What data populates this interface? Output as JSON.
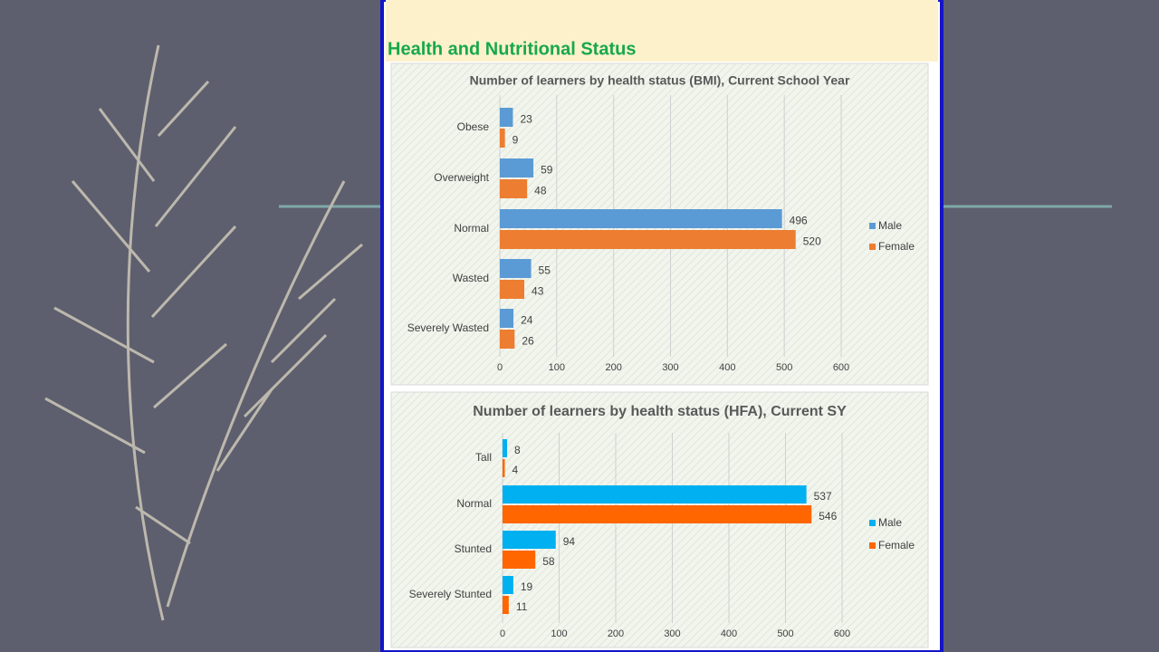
{
  "heading": "Health and Nutritional Status",
  "chart_data": [
    {
      "type": "barh",
      "title": "Number of learners by health status (BMI), Current School Year",
      "categories": [
        "Obese",
        "Overweight",
        "Normal",
        "Wasted",
        "Severely Wasted"
      ],
      "series": [
        {
          "name": "Male",
          "color": "#5b9bd5",
          "values": [
            23,
            59,
            496,
            55,
            24
          ]
        },
        {
          "name": "Female",
          "color": "#ed7d31",
          "values": [
            9,
            48,
            520,
            43,
            26
          ]
        }
      ],
      "xlim": [
        0,
        600
      ],
      "xticks": [
        0,
        100,
        200,
        300,
        400,
        500,
        600
      ],
      "grid": true,
      "legend": "right"
    },
    {
      "type": "barh",
      "title": "Number of learners by health status (HFA), Current SY",
      "categories": [
        "Tall",
        "Normal",
        "Stunted",
        "Severely Stunted"
      ],
      "series": [
        {
          "name": "Male",
          "color": "#00b0f0",
          "values": [
            8,
            537,
            94,
            19
          ]
        },
        {
          "name": "Female",
          "color": "#ff6600",
          "values": [
            4,
            546,
            58,
            11
          ]
        }
      ],
      "xlim": [
        0,
        600
      ],
      "xticks": [
        0,
        100,
        200,
        300,
        400,
        500,
        600
      ],
      "grid": true,
      "legend": "right"
    }
  ]
}
